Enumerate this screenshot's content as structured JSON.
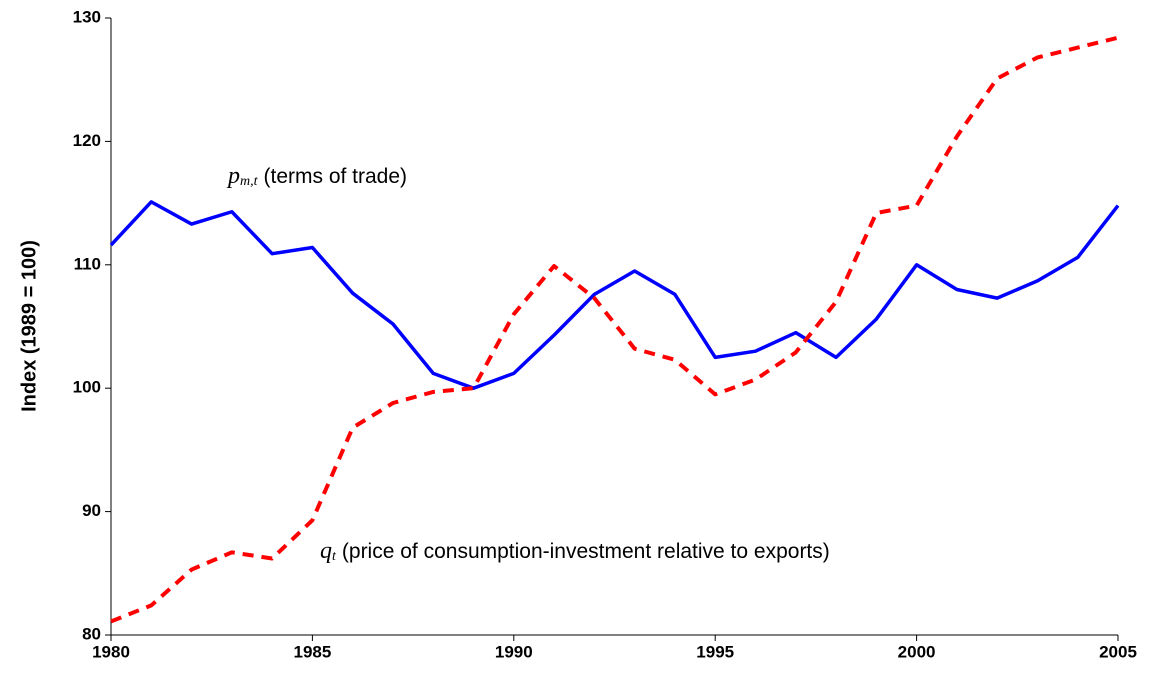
{
  "chart_data": {
    "type": "line",
    "y_label": "Index (1989 = 100)",
    "x": [
      1980,
      1981,
      1982,
      1983,
      1984,
      1985,
      1986,
      1987,
      1988,
      1989,
      1990,
      1991,
      1992,
      1993,
      1994,
      1995,
      1996,
      1997,
      1998,
      1999,
      2000,
      2001,
      2002,
      2003,
      2004,
      2005
    ],
    "series": [
      {
        "color": "#0000ff",
        "dash": false,
        "values": [
          111.6,
          115.1,
          113.3,
          114.3,
          110.9,
          111.4,
          107.7,
          105.2,
          101.2,
          100.0,
          101.2,
          104.3,
          107.6,
          109.5,
          107.6,
          102.5,
          103.0,
          104.5,
          102.5,
          105.6,
          110.0,
          108.0,
          107.3,
          108.7,
          110.6,
          114.8
        ]
      },
      {
        "color": "#ff0000",
        "dash": true,
        "values": [
          81.1,
          82.4,
          85.3,
          86.7,
          86.2,
          89.3,
          96.8,
          98.8,
          99.7,
          100.0,
          106.0,
          109.9,
          107.3,
          103.2,
          102.3,
          99.5,
          100.7,
          102.9,
          107.0,
          114.2,
          114.8,
          120.4,
          125.1,
          126.8,
          127.6,
          128.4
        ]
      }
    ],
    "annotations": [
      {
        "symbol": "p",
        "subscript": "m,t",
        "text": "(terms of trade)"
      },
      {
        "symbol": "q",
        "subscript": "t",
        "text": "(price of consumption-investment relative to exports)"
      }
    ],
    "xlim": [
      1980,
      2005
    ],
    "xticks": [
      1980,
      1985,
      1990,
      1995,
      2000,
      2005
    ],
    "ylim": [
      80,
      130
    ],
    "yticks": [
      80,
      90,
      100,
      110,
      120,
      130
    ]
  }
}
